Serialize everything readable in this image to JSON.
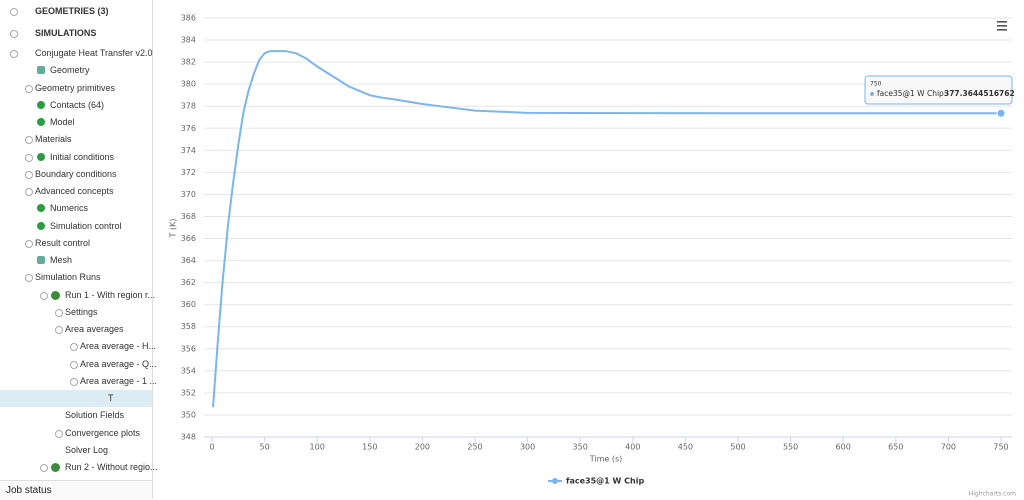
{
  "sidebar": {
    "sections": [
      "GEOMETRIES (3)",
      "SIMULATIONS"
    ],
    "tree": [
      "Conjugate Heat Transfer v2.0",
      "Geometry",
      "Geometry primitives",
      "Contacts (64)",
      "Model",
      "Materials",
      "Initial conditions",
      "Boundary conditions",
      "Advanced concepts",
      "Numerics",
      "Simulation control",
      "Result control",
      "Mesh",
      "Simulation Runs",
      "Run 1 - With region r...",
      "Settings",
      "Area averages",
      "Area average - H...",
      "Area average - Q...",
      "Area average - 1 ...",
      "T",
      "Solution Fields",
      "Convergence plots",
      "Solver Log",
      "Run 2 - Without regio..."
    ],
    "footer": "Job status"
  },
  "chart_data": {
    "type": "line",
    "x_label": "Time (s)",
    "y_label": "T (K)",
    "credit": "Highcharts.com",
    "x": [
      1,
      5,
      10,
      15,
      20,
      25,
      30,
      35,
      40,
      45,
      50,
      55,
      60,
      70,
      80,
      90,
      100,
      110,
      120,
      130,
      140,
      150,
      160,
      175,
      200,
      225,
      250,
      275,
      300,
      400,
      500,
      600,
      750
    ],
    "series": [
      {
        "name": "face35@1 W Chip",
        "color": "#7cb5ec",
        "values": [
          350.7,
          356,
          362,
          367,
          371,
          374.5,
          377.5,
          379.5,
          381,
          382.2,
          382.8,
          383,
          383,
          383,
          382.8,
          382.3,
          381.6,
          381,
          380.4,
          379.8,
          379.4,
          379,
          378.8,
          378.6,
          378.2,
          377.9,
          377.6,
          377.5,
          377.4,
          377.37,
          377.36,
          377.36,
          377.3644516762
        ]
      }
    ],
    "tooltip": {
      "label": "face35@1 W Chip:"
    },
    "xlim": [
      0,
      750
    ],
    "xticks": [
      0,
      50,
      100,
      150,
      200,
      250,
      300,
      350,
      400,
      450,
      500,
      550,
      600,
      650,
      700,
      750
    ],
    "ylim": [
      348,
      386
    ],
    "yticks": [
      348,
      350,
      352,
      354,
      356,
      358,
      360,
      362,
      364,
      366,
      368,
      370,
      372,
      374,
      376,
      378,
      380,
      382,
      384,
      386
    ],
    "grid": true
  }
}
